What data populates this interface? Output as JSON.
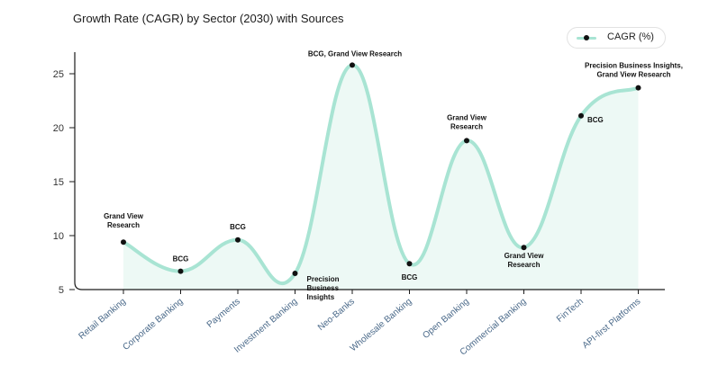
{
  "chart_data": {
    "type": "line",
    "title": "Growth Rate (CAGR) by Sector (2030) with Sources",
    "categories": [
      "Retail Banking",
      "Corporate Banking",
      "Payments",
      "Investment Banking",
      "Neo-Banks",
      "Wholesale Banking",
      "Open Banking",
      "Commercial Banking",
      "FinTech",
      "API-first Platforms"
    ],
    "series": [
      {
        "name": "CAGR (%)",
        "values": [
          9.4,
          6.7,
          9.6,
          6.5,
          25.8,
          7.4,
          18.8,
          8.9,
          21.1,
          23.7
        ]
      }
    ],
    "annotations": [
      [
        "Grand View",
        "Research"
      ],
      [
        "BCG"
      ],
      [
        "BCG"
      ],
      [
        "Precision",
        "Business",
        "Insights"
      ],
      [
        "BCG, Grand View Research"
      ],
      [
        "BCG"
      ],
      [
        "Grand View",
        "Research"
      ],
      [
        "Grand View",
        "Research"
      ],
      [
        "BCG"
      ],
      [
        "Precision Business Insights,",
        "Grand View Research"
      ]
    ],
    "yticks": [
      5,
      10,
      15,
      20,
      25
    ],
    "ylim": [
      5,
      27
    ],
    "xlabel": "",
    "ylabel": "",
    "legend": "top-right",
    "colors": {
      "line": "#a8e4d3",
      "fill": "#edf9f5",
      "marker": "#111111"
    }
  }
}
